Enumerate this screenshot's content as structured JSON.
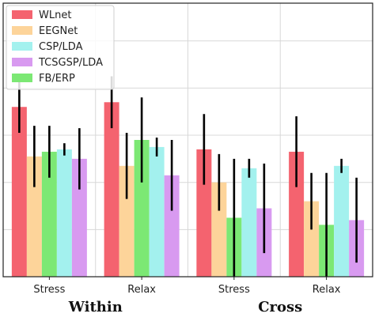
{
  "chart_data": {
    "type": "bar",
    "categories": [
      "Stress",
      "Relax",
      "Stress",
      "Relax"
    ],
    "groups": [
      {
        "label": "Within",
        "categories": [
          0,
          1
        ]
      },
      {
        "label": "Cross",
        "categories": [
          2,
          3
        ]
      }
    ],
    "ylim": [
      0,
      5.8
    ],
    "grid": true,
    "legend_position": "top-left",
    "series": [
      {
        "name": "WLnet",
        "color": "#f4636f",
        "values": [
          3.6,
          3.7,
          2.7,
          2.65
        ],
        "errors": [
          0.55,
          0.55,
          0.75,
          0.75
        ]
      },
      {
        "name": "EEGNet",
        "color": "#fdd49a",
        "values": [
          2.55,
          2.35,
          2.0,
          1.6
        ],
        "errors": [
          0.65,
          0.7,
          0.6,
          0.6
        ]
      },
      {
        "name": "CSP/LDA",
        "color": "#a3f1ee",
        "values": [
          2.7,
          2.75,
          2.3,
          2.35
        ],
        "errors": [
          0.13,
          0.2,
          0.2,
          0.15
        ]
      },
      {
        "name": "TCSGSP/LDA",
        "color": "#d89af0",
        "values": [
          2.5,
          2.15,
          1.45,
          1.2
        ],
        "errors": [
          0.65,
          0.75,
          0.95,
          0.9
        ]
      },
      {
        "name": "FB/ERP",
        "color": "#7ce874",
        "values": [
          2.65,
          2.9,
          1.25,
          1.1
        ],
        "errors": [
          0.55,
          0.9,
          1.25,
          1.1
        ]
      }
    ],
    "draw_order": [
      0,
      1,
      4,
      2,
      3
    ]
  }
}
